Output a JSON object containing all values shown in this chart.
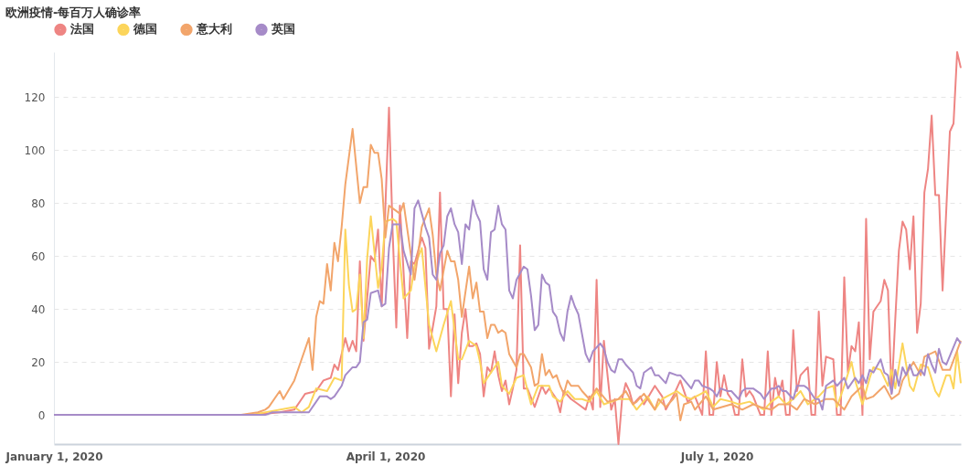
{
  "chart_data": {
    "type": "line",
    "title": "欧洲疫情-每百万人确诊率",
    "xlim": [
      "2020-01-01",
      "2020-09-06"
    ],
    "xticks": [
      {
        "value": "2020-01-01",
        "label": "January 1, 2020"
      },
      {
        "value": "2020-04-01",
        "label": "April 1, 2020"
      },
      {
        "value": "2020-07-01",
        "label": "July 1, 2020"
      }
    ],
    "ylim": [
      -11,
      137
    ],
    "yticks": [
      0,
      20,
      40,
      60,
      80,
      100,
      120
    ],
    "grid": "y",
    "legend": "top left",
    "line_style": "solid",
    "series": [
      {
        "name": "法国",
        "color": "#ee8583",
        "x": [
          "2020-01-01",
          "2020-02-25",
          "2020-03-03",
          "2020-03-07",
          "2020-03-09",
          "2020-03-10",
          "2020-03-13",
          "2020-03-15",
          "2020-03-17",
          "2020-03-18",
          "2020-03-19",
          "2020-03-21",
          "2020-03-22",
          "2020-03-23",
          "2020-03-24",
          "2020-03-25",
          "2020-03-26",
          "2020-03-28",
          "2020-03-29",
          "2020-03-30",
          "2020-03-31",
          "2020-04-02",
          "2020-04-03",
          "2020-04-04",
          "2020-04-05",
          "2020-04-07",
          "2020-04-08",
          "2020-04-09",
          "2020-04-11",
          "2020-04-12",
          "2020-04-13",
          "2020-04-15",
          "2020-04-16",
          "2020-04-17",
          "2020-04-18",
          "2020-04-19",
          "2020-04-20",
          "2020-04-21",
          "2020-04-22",
          "2020-04-23",
          "2020-04-24",
          "2020-04-25",
          "2020-04-26",
          "2020-04-27",
          "2020-04-28",
          "2020-04-29",
          "2020-04-30",
          "2020-05-01",
          "2020-05-02",
          "2020-05-03",
          "2020-05-04",
          "2020-05-05",
          "2020-05-06",
          "2020-05-07",
          "2020-05-08",
          "2020-05-09",
          "2020-05-10",
          "2020-05-12",
          "2020-05-14",
          "2020-05-15",
          "2020-05-16",
          "2020-05-18",
          "2020-05-19",
          "2020-05-20",
          "2020-05-22",
          "2020-05-24",
          "2020-05-26",
          "2020-05-27",
          "2020-05-28",
          "2020-05-29",
          "2020-05-30",
          "2020-05-31",
          "2020-06-02",
          "2020-06-03",
          "2020-06-04",
          "2020-06-05",
          "2020-06-06",
          "2020-06-07",
          "2020-06-08",
          "2020-06-10",
          "2020-06-11",
          "2020-06-14",
          "2020-06-16",
          "2020-06-17",
          "2020-06-19",
          "2020-06-21",
          "2020-06-23",
          "2020-06-25",
          "2020-06-27",
          "2020-06-28",
          "2020-06-29",
          "2020-06-30",
          "2020-07-01",
          "2020-07-02",
          "2020-07-03",
          "2020-07-04",
          "2020-07-05",
          "2020-07-06",
          "2020-07-07",
          "2020-07-08",
          "2020-07-09",
          "2020-07-10",
          "2020-07-11",
          "2020-07-13",
          "2020-07-14",
          "2020-07-15",
          "2020-07-16",
          "2020-07-17",
          "2020-07-18",
          "2020-07-19",
          "2020-07-20",
          "2020-07-21",
          "2020-07-22",
          "2020-07-23",
          "2020-07-24",
          "2020-07-26",
          "2020-07-27",
          "2020-07-28",
          "2020-07-29",
          "2020-07-30",
          "2020-07-31",
          "2020-08-02",
          "2020-08-03",
          "2020-08-04",
          "2020-08-05",
          "2020-08-06",
          "2020-08-07",
          "2020-08-08",
          "2020-08-09",
          "2020-08-10",
          "2020-08-11",
          "2020-08-12",
          "2020-08-13",
          "2020-08-14",
          "2020-08-15",
          "2020-08-16",
          "2020-08-17",
          "2020-08-18",
          "2020-08-19",
          "2020-08-20",
          "2020-08-21",
          "2020-08-22",
          "2020-08-23",
          "2020-08-24",
          "2020-08-25",
          "2020-08-26",
          "2020-08-27",
          "2020-08-28",
          "2020-08-29",
          "2020-08-30",
          "2020-08-31",
          "2020-09-01",
          "2020-09-03",
          "2020-09-04",
          "2020-09-05",
          "2020-09-06"
        ],
        "values": [
          0,
          0,
          1,
          2,
          6,
          8,
          9,
          13,
          14,
          19,
          17,
          29,
          24,
          28,
          24,
          58,
          28,
          60,
          58,
          70,
          41,
          116,
          69,
          33,
          79,
          29,
          58,
          57,
          67,
          63,
          25,
          41,
          84,
          40,
          40,
          7,
          38,
          12,
          31,
          40,
          26,
          26,
          27,
          23,
          7,
          18,
          16,
          24,
          15,
          9,
          13,
          4,
          10,
          17,
          64,
          10,
          10,
          3,
          11,
          8,
          10,
          6,
          1,
          9,
          6,
          4,
          2,
          7,
          2,
          51,
          3,
          28,
          2,
          6,
          -11,
          6,
          12,
          9,
          4,
          7,
          4,
          11,
          7,
          2,
          7,
          13,
          5,
          7,
          0,
          24,
          0,
          0,
          20,
          7,
          15,
          8,
          6,
          0,
          0,
          21,
          7,
          9,
          7,
          0,
          0,
          24,
          0,
          14,
          7,
          13,
          0,
          0,
          32,
          9,
          15,
          18,
          0,
          0,
          39,
          11,
          22,
          21,
          0,
          0,
          52,
          16,
          26,
          24,
          35,
          0,
          74,
          21,
          39,
          41,
          43,
          51,
          47,
          8,
          36,
          62,
          73,
          70,
          55,
          75,
          31,
          42,
          84,
          93,
          113,
          83,
          83,
          47,
          107,
          110,
          137,
          131
        ]
      },
      {
        "name": "德国",
        "color": "#fcd55b",
        "x": [
          "2020-01-01",
          "2020-02-24",
          "2020-03-07",
          "2020-03-09",
          "2020-03-11",
          "2020-03-13",
          "2020-03-16",
          "2020-03-18",
          "2020-03-20",
          "2020-03-21",
          "2020-03-22",
          "2020-03-23",
          "2020-03-24",
          "2020-03-25",
          "2020-03-26",
          "2020-03-27",
          "2020-03-28",
          "2020-03-30",
          "2020-03-31",
          "2020-04-01",
          "2020-04-03",
          "2020-04-04",
          "2020-04-06",
          "2020-04-08",
          "2020-04-09",
          "2020-04-11",
          "2020-04-13",
          "2020-04-15",
          "2020-04-17",
          "2020-04-19",
          "2020-04-21",
          "2020-04-22",
          "2020-04-24",
          "2020-04-26",
          "2020-04-27",
          "2020-04-28",
          "2020-04-30",
          "2020-05-02",
          "2020-05-03",
          "2020-05-05",
          "2020-05-07",
          "2020-05-09",
          "2020-05-11",
          "2020-05-13",
          "2020-05-16",
          "2020-05-17",
          "2020-05-19",
          "2020-05-21",
          "2020-05-23",
          "2020-05-25",
          "2020-05-27",
          "2020-05-29",
          "2020-05-31",
          "2020-06-04",
          "2020-06-07",
          "2020-06-09",
          "2020-06-12",
          "2020-06-14",
          "2020-06-16",
          "2020-06-20",
          "2020-06-22",
          "2020-06-24",
          "2020-06-28",
          "2020-06-30",
          "2020-07-02",
          "2020-07-05",
          "2020-07-07",
          "2020-07-10",
          "2020-07-14",
          "2020-07-16",
          "2020-07-18",
          "2020-07-20",
          "2020-07-22",
          "2020-07-24",
          "2020-07-26",
          "2020-07-29",
          "2020-07-31",
          "2020-08-02",
          "2020-08-03",
          "2020-08-05",
          "2020-08-07",
          "2020-08-08",
          "2020-08-10",
          "2020-08-12",
          "2020-08-13",
          "2020-08-15",
          "2020-08-17",
          "2020-08-18",
          "2020-08-19",
          "2020-08-21",
          "2020-08-23",
          "2020-08-24",
          "2020-08-26",
          "2020-08-28",
          "2020-08-30",
          "2020-08-31",
          "2020-09-02",
          "2020-09-03",
          "2020-09-04",
          "2020-09-05",
          "2020-09-06"
        ],
        "values": [
          0,
          0,
          3,
          1,
          3,
          10,
          9,
          14,
          13,
          70,
          49,
          39,
          40,
          53,
          29,
          59,
          75,
          48,
          56,
          73,
          74,
          73,
          44,
          47,
          56,
          63,
          34,
          24,
          34,
          43,
          21,
          21,
          28,
          26,
          20,
          12,
          16,
          20,
          11,
          8,
          14,
          15,
          4,
          11,
          11,
          7,
          5,
          9,
          6,
          6,
          5,
          9,
          4,
          6,
          6,
          2,
          7,
          2,
          6,
          9,
          7,
          6,
          9,
          3,
          6,
          5,
          4,
          5,
          2,
          5,
          7,
          4,
          6,
          9,
          4,
          7,
          10,
          11,
          3,
          11,
          20,
          13,
          4,
          14,
          18,
          17,
          11,
          17,
          10,
          27,
          11,
          9,
          19,
          18,
          9,
          7,
          15,
          15,
          10,
          24,
          12
        ]
      },
      {
        "name": "意大利",
        "color": "#f2a56b",
        "x": [
          "2020-01-01",
          "2020-02-21",
          "2020-02-26",
          "2020-02-28",
          "2020-02-29",
          "2020-03-03",
          "2020-03-04",
          "2020-03-07",
          "2020-03-09",
          "2020-03-11",
          "2020-03-12",
          "2020-03-13",
          "2020-03-14",
          "2020-03-15",
          "2020-03-16",
          "2020-03-17",
          "2020-03-18",
          "2020-03-19",
          "2020-03-20",
          "2020-03-21",
          "2020-03-23",
          "2020-03-25",
          "2020-03-26",
          "2020-03-27",
          "2020-03-28",
          "2020-03-29",
          "2020-03-30",
          "2020-03-31",
          "2020-04-01",
          "2020-04-02",
          "2020-04-04",
          "2020-04-05",
          "2020-04-06",
          "2020-04-09",
          "2020-04-11",
          "2020-04-13",
          "2020-04-14",
          "2020-04-15",
          "2020-04-16",
          "2020-04-18",
          "2020-04-19",
          "2020-04-20",
          "2020-04-21",
          "2020-04-22",
          "2020-04-24",
          "2020-04-25",
          "2020-04-26",
          "2020-04-27",
          "2020-04-28",
          "2020-04-29",
          "2020-04-30",
          "2020-05-01",
          "2020-05-02",
          "2020-05-03",
          "2020-05-04",
          "2020-05-05",
          "2020-05-07",
          "2020-05-08",
          "2020-05-09",
          "2020-05-11",
          "2020-05-12",
          "2020-05-13",
          "2020-05-14",
          "2020-05-15",
          "2020-05-16",
          "2020-05-17",
          "2020-05-18",
          "2020-05-19",
          "2020-05-20",
          "2020-05-21",
          "2020-05-22",
          "2020-05-24",
          "2020-05-25",
          "2020-05-27",
          "2020-05-29",
          "2020-06-01",
          "2020-06-04",
          "2020-06-06",
          "2020-06-08",
          "2020-06-09",
          "2020-06-11",
          "2020-06-14",
          "2020-06-15",
          "2020-06-17",
          "2020-06-19",
          "2020-06-20",
          "2020-06-21",
          "2020-06-22",
          "2020-06-24",
          "2020-06-25",
          "2020-06-28",
          "2020-06-30",
          "2020-07-05",
          "2020-07-08",
          "2020-07-11",
          "2020-07-13",
          "2020-07-16",
          "2020-07-18",
          "2020-07-21",
          "2020-07-23",
          "2020-07-25",
          "2020-07-28",
          "2020-07-31",
          "2020-08-02",
          "2020-08-05",
          "2020-08-07",
          "2020-08-10",
          "2020-08-11",
          "2020-08-13",
          "2020-08-16",
          "2020-08-18",
          "2020-08-20",
          "2020-08-21",
          "2020-08-24",
          "2020-08-26",
          "2020-08-27",
          "2020-08-30",
          "2020-09-01",
          "2020-09-03",
          "2020-09-06"
        ],
        "values": [
          0,
          0,
          1,
          2,
          3,
          9,
          6,
          13,
          21,
          29,
          17,
          37,
          43,
          42,
          57,
          47,
          65,
          58,
          71,
          87,
          108,
          80,
          86,
          86,
          102,
          99,
          99,
          89,
          67,
          79,
          77,
          76,
          80,
          51,
          71,
          78,
          68,
          53,
          47,
          62,
          58,
          58,
          51,
          37,
          56,
          44,
          50,
          39,
          39,
          29,
          34,
          34,
          31,
          32,
          31,
          23,
          18,
          23,
          23,
          18,
          11,
          12,
          23,
          15,
          17,
          14,
          15,
          11,
          8,
          13,
          11,
          11,
          9,
          6,
          10,
          5,
          6,
          9,
          4,
          5,
          8,
          2,
          6,
          3,
          6,
          8,
          -2,
          4,
          5,
          2,
          7,
          2,
          4,
          2,
          4,
          3,
          2,
          4,
          4,
          2,
          6,
          4,
          6,
          6,
          2,
          7,
          11,
          6,
          7,
          11,
          6,
          8,
          13,
          20,
          15,
          22,
          24,
          17,
          17,
          28
        ]
      },
      {
        "name": "英国",
        "color": "#a68bc8",
        "x": [
          "2020-01-01",
          "2020-02-28",
          "2020-03-01",
          "2020-03-11",
          "2020-03-14",
          "2020-03-16",
          "2020-03-17",
          "2020-03-18",
          "2020-03-20",
          "2020-03-21",
          "2020-03-23",
          "2020-03-24",
          "2020-03-25",
          "2020-03-26",
          "2020-03-27",
          "2020-03-28",
          "2020-03-30",
          "2020-03-31",
          "2020-04-01",
          "2020-04-02",
          "2020-04-03",
          "2020-04-05",
          "2020-04-06",
          "2020-04-08",
          "2020-04-09",
          "2020-04-10",
          "2020-04-12",
          "2020-04-13",
          "2020-04-14",
          "2020-04-15",
          "2020-04-16",
          "2020-04-17",
          "2020-04-18",
          "2020-04-19",
          "2020-04-20",
          "2020-04-21",
          "2020-04-22",
          "2020-04-23",
          "2020-04-24",
          "2020-04-25",
          "2020-04-26",
          "2020-04-27",
          "2020-04-28",
          "2020-04-29",
          "2020-04-30",
          "2020-05-01",
          "2020-05-02",
          "2020-05-03",
          "2020-05-04",
          "2020-05-05",
          "2020-05-06",
          "2020-05-07",
          "2020-05-09",
          "2020-05-10",
          "2020-05-11",
          "2020-05-12",
          "2020-05-13",
          "2020-05-14",
          "2020-05-15",
          "2020-05-16",
          "2020-05-17",
          "2020-05-18",
          "2020-05-19",
          "2020-05-20",
          "2020-05-21",
          "2020-05-22",
          "2020-05-23",
          "2020-05-24",
          "2020-05-26",
          "2020-05-27",
          "2020-05-28",
          "2020-05-30",
          "2020-05-31",
          "2020-06-01",
          "2020-06-02",
          "2020-06-03",
          "2020-06-04",
          "2020-06-05",
          "2020-06-06",
          "2020-06-08",
          "2020-06-09",
          "2020-06-10",
          "2020-06-11",
          "2020-06-13",
          "2020-06-14",
          "2020-06-15",
          "2020-06-17",
          "2020-06-18",
          "2020-06-20",
          "2020-06-21",
          "2020-06-24",
          "2020-06-25",
          "2020-06-26",
          "2020-06-27",
          "2020-06-29",
          "2020-06-30",
          "2020-07-01",
          "2020-07-02",
          "2020-07-04",
          "2020-07-05",
          "2020-07-07",
          "2020-07-08",
          "2020-07-09",
          "2020-07-11",
          "2020-07-13",
          "2020-07-14",
          "2020-07-16",
          "2020-07-17",
          "2020-07-18",
          "2020-07-19",
          "2020-07-20",
          "2020-07-22",
          "2020-07-23",
          "2020-07-25",
          "2020-07-26",
          "2020-07-28",
          "2020-07-29",
          "2020-07-30",
          "2020-07-31",
          "2020-08-02",
          "2020-08-03",
          "2020-08-05",
          "2020-08-06",
          "2020-08-08",
          "2020-08-09",
          "2020-08-10",
          "2020-08-11",
          "2020-08-12",
          "2020-08-13",
          "2020-08-15",
          "2020-08-16",
          "2020-08-17",
          "2020-08-18",
          "2020-08-19",
          "2020-08-20",
          "2020-08-21",
          "2020-08-22",
          "2020-08-23",
          "2020-08-24",
          "2020-08-25",
          "2020-08-26",
          "2020-08-27",
          "2020-08-28",
          "2020-08-29",
          "2020-08-30",
          "2020-08-31",
          "2020-09-01",
          "2020-09-02",
          "2020-09-05",
          "2020-09-06"
        ],
        "values": [
          0,
          0,
          1,
          1,
          7,
          7,
          6,
          7,
          11,
          15,
          18,
          18,
          20,
          35,
          36,
          46,
          47,
          41,
          42,
          63,
          72,
          72,
          62,
          53,
          78,
          81,
          71,
          67,
          53,
          51,
          61,
          64,
          75,
          78,
          72,
          69,
          57,
          72,
          70,
          81,
          76,
          73,
          55,
          51,
          69,
          70,
          79,
          72,
          70,
          47,
          44,
          51,
          56,
          55,
          45,
          32,
          34,
          53,
          50,
          49,
          39,
          37,
          31,
          28,
          39,
          45,
          41,
          38,
          23,
          20,
          24,
          27,
          25,
          20,
          17,
          16,
          21,
          21,
          19,
          16,
          11,
          10,
          16,
          18,
          15,
          15,
          12,
          16,
          15,
          15,
          10,
          13,
          13,
          11,
          10,
          9,
          7,
          10,
          9,
          9,
          6,
          9,
          10,
          10,
          8,
          6,
          10,
          10,
          11,
          9,
          9,
          6,
          11,
          11,
          10,
          6,
          6,
          2,
          11,
          13,
          11,
          14,
          10,
          14,
          12,
          15,
          12,
          17,
          16,
          21,
          16,
          15,
          8,
          17,
          11,
          18,
          15,
          19,
          15,
          15,
          17,
          15,
          23,
          19,
          16,
          25,
          20,
          19,
          29,
          27
        ]
      }
    ]
  }
}
